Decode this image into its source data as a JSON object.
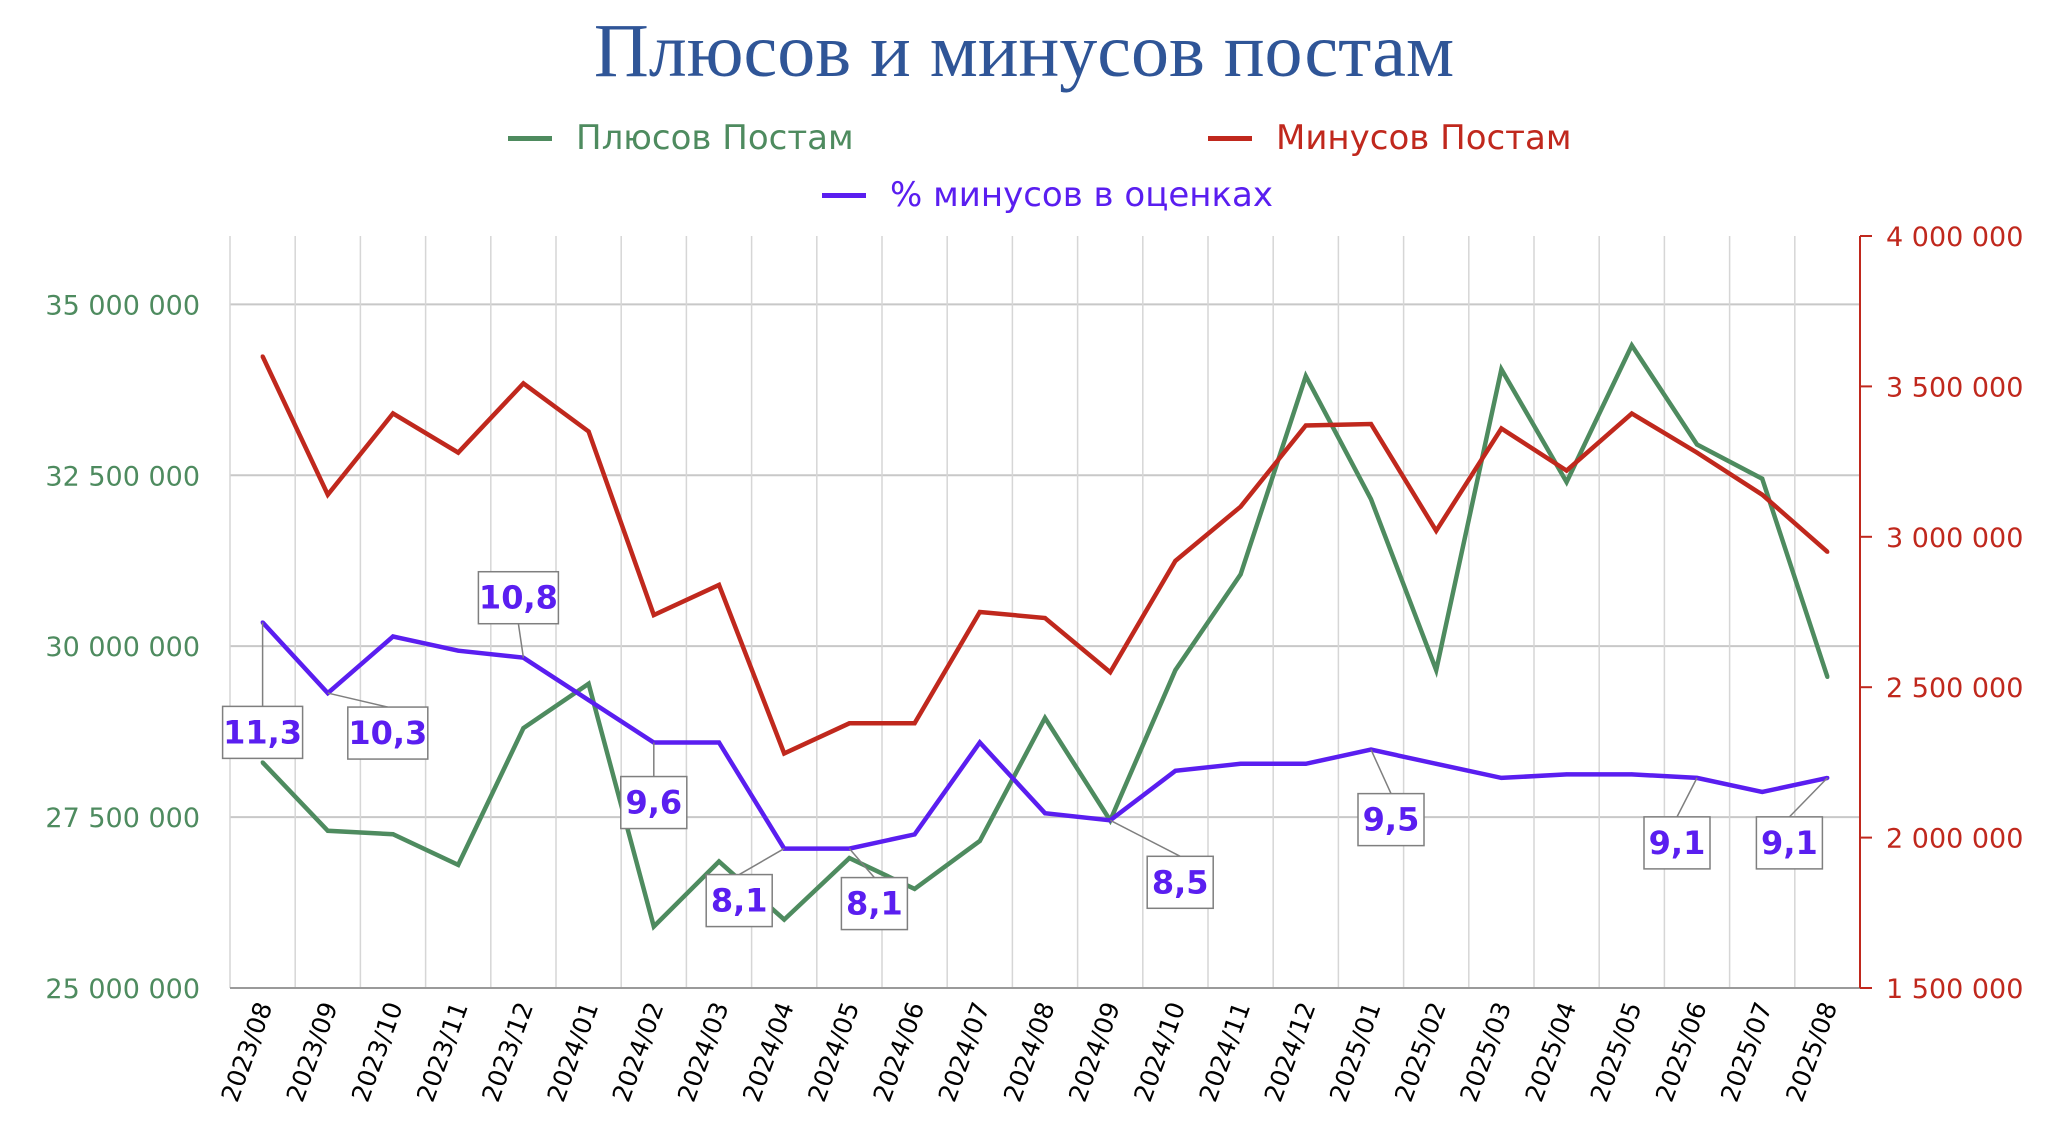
{
  "chart_data": {
    "type": "line",
    "title": "Плюсов и минусов постам",
    "categories": [
      "2023/08",
      "2023/09",
      "2023/10",
      "2023/11",
      "2023/12",
      "2024/01",
      "2024/02",
      "2024/03",
      "2024/04",
      "2024/05",
      "2024/06",
      "2024/07",
      "2024/08",
      "2024/09",
      "2024/10",
      "2024/11",
      "2024/12",
      "2025/01",
      "2025/02",
      "2025/03",
      "2025/04",
      "2025/05",
      "2025/06",
      "2025/07",
      "2025/08"
    ],
    "left_axis": {
      "min": 25000000,
      "max": 36000000,
      "ticks": [
        "25 000 000",
        "27 500 000",
        "30 000 000",
        "32 500 000",
        "35 000 000"
      ],
      "tick_values": [
        25000000,
        27500000,
        30000000,
        32500000,
        35000000
      ],
      "color": "#4E8B5F"
    },
    "right_axis": {
      "min": 1500000,
      "max": 4000000,
      "ticks": [
        "1 500 000",
        "2 000 000",
        "2 500 000",
        "3 000 000",
        "3 500 000",
        "4 000 000"
      ],
      "tick_values": [
        1500000,
        2000000,
        2500000,
        3000000,
        3500000,
        4000000
      ],
      "color": "#C0281D"
    },
    "grid": true,
    "legend_position": "top",
    "series": [
      {
        "name": "Плюсов Постам",
        "axis": "left",
        "color": "#4E8B5F",
        "values": [
          28300000,
          27300000,
          27250000,
          26800000,
          28800000,
          29450000,
          25900000,
          26850000,
          26000000,
          26900000,
          26450000,
          27150000,
          28950000,
          27450000,
          29650000,
          31050000,
          33950000,
          32150000,
          29650000,
          34050000,
          32400000,
          34400000,
          32950000,
          32450000,
          29550000
        ]
      },
      {
        "name": "Минусов Постам",
        "axis": "right",
        "color": "#C0281D",
        "values": [
          3600000,
          3140000,
          3410000,
          3280000,
          3510000,
          3350000,
          2740000,
          2840000,
          2280000,
          2380000,
          2380000,
          2750000,
          2730000,
          2550000,
          2920000,
          3100000,
          3370000,
          3375000,
          3020000,
          3360000,
          3220000,
          3410000,
          3280000,
          3140000,
          2950000
        ]
      },
      {
        "name": "% минусов в оценках",
        "axis": "pct",
        "color": "#5A1EF0",
        "values": [
          11.3,
          10.3,
          11.1,
          10.9,
          10.8,
          10.2,
          9.6,
          9.6,
          8.1,
          8.1,
          8.3,
          9.6,
          8.6,
          8.5,
          9.2,
          9.3,
          9.3,
          9.5,
          9.3,
          9.1,
          9.15,
          9.15,
          9.1,
          8.9,
          9.1
        ]
      }
    ],
    "data_labels": [
      {
        "index": 0,
        "text": "11,3"
      },
      {
        "index": 1,
        "text": "10,3"
      },
      {
        "index": 4,
        "text": "10,8"
      },
      {
        "index": 6,
        "text": "9,6"
      },
      {
        "index": 8,
        "text": "8,1"
      },
      {
        "index": 9,
        "text": "8,1"
      },
      {
        "index": 13,
        "text": "8,5"
      },
      {
        "index": 17,
        "text": "9,5"
      },
      {
        "index": 22,
        "text": "9,1"
      },
      {
        "index": 24,
        "text": "9,1"
      }
    ]
  }
}
